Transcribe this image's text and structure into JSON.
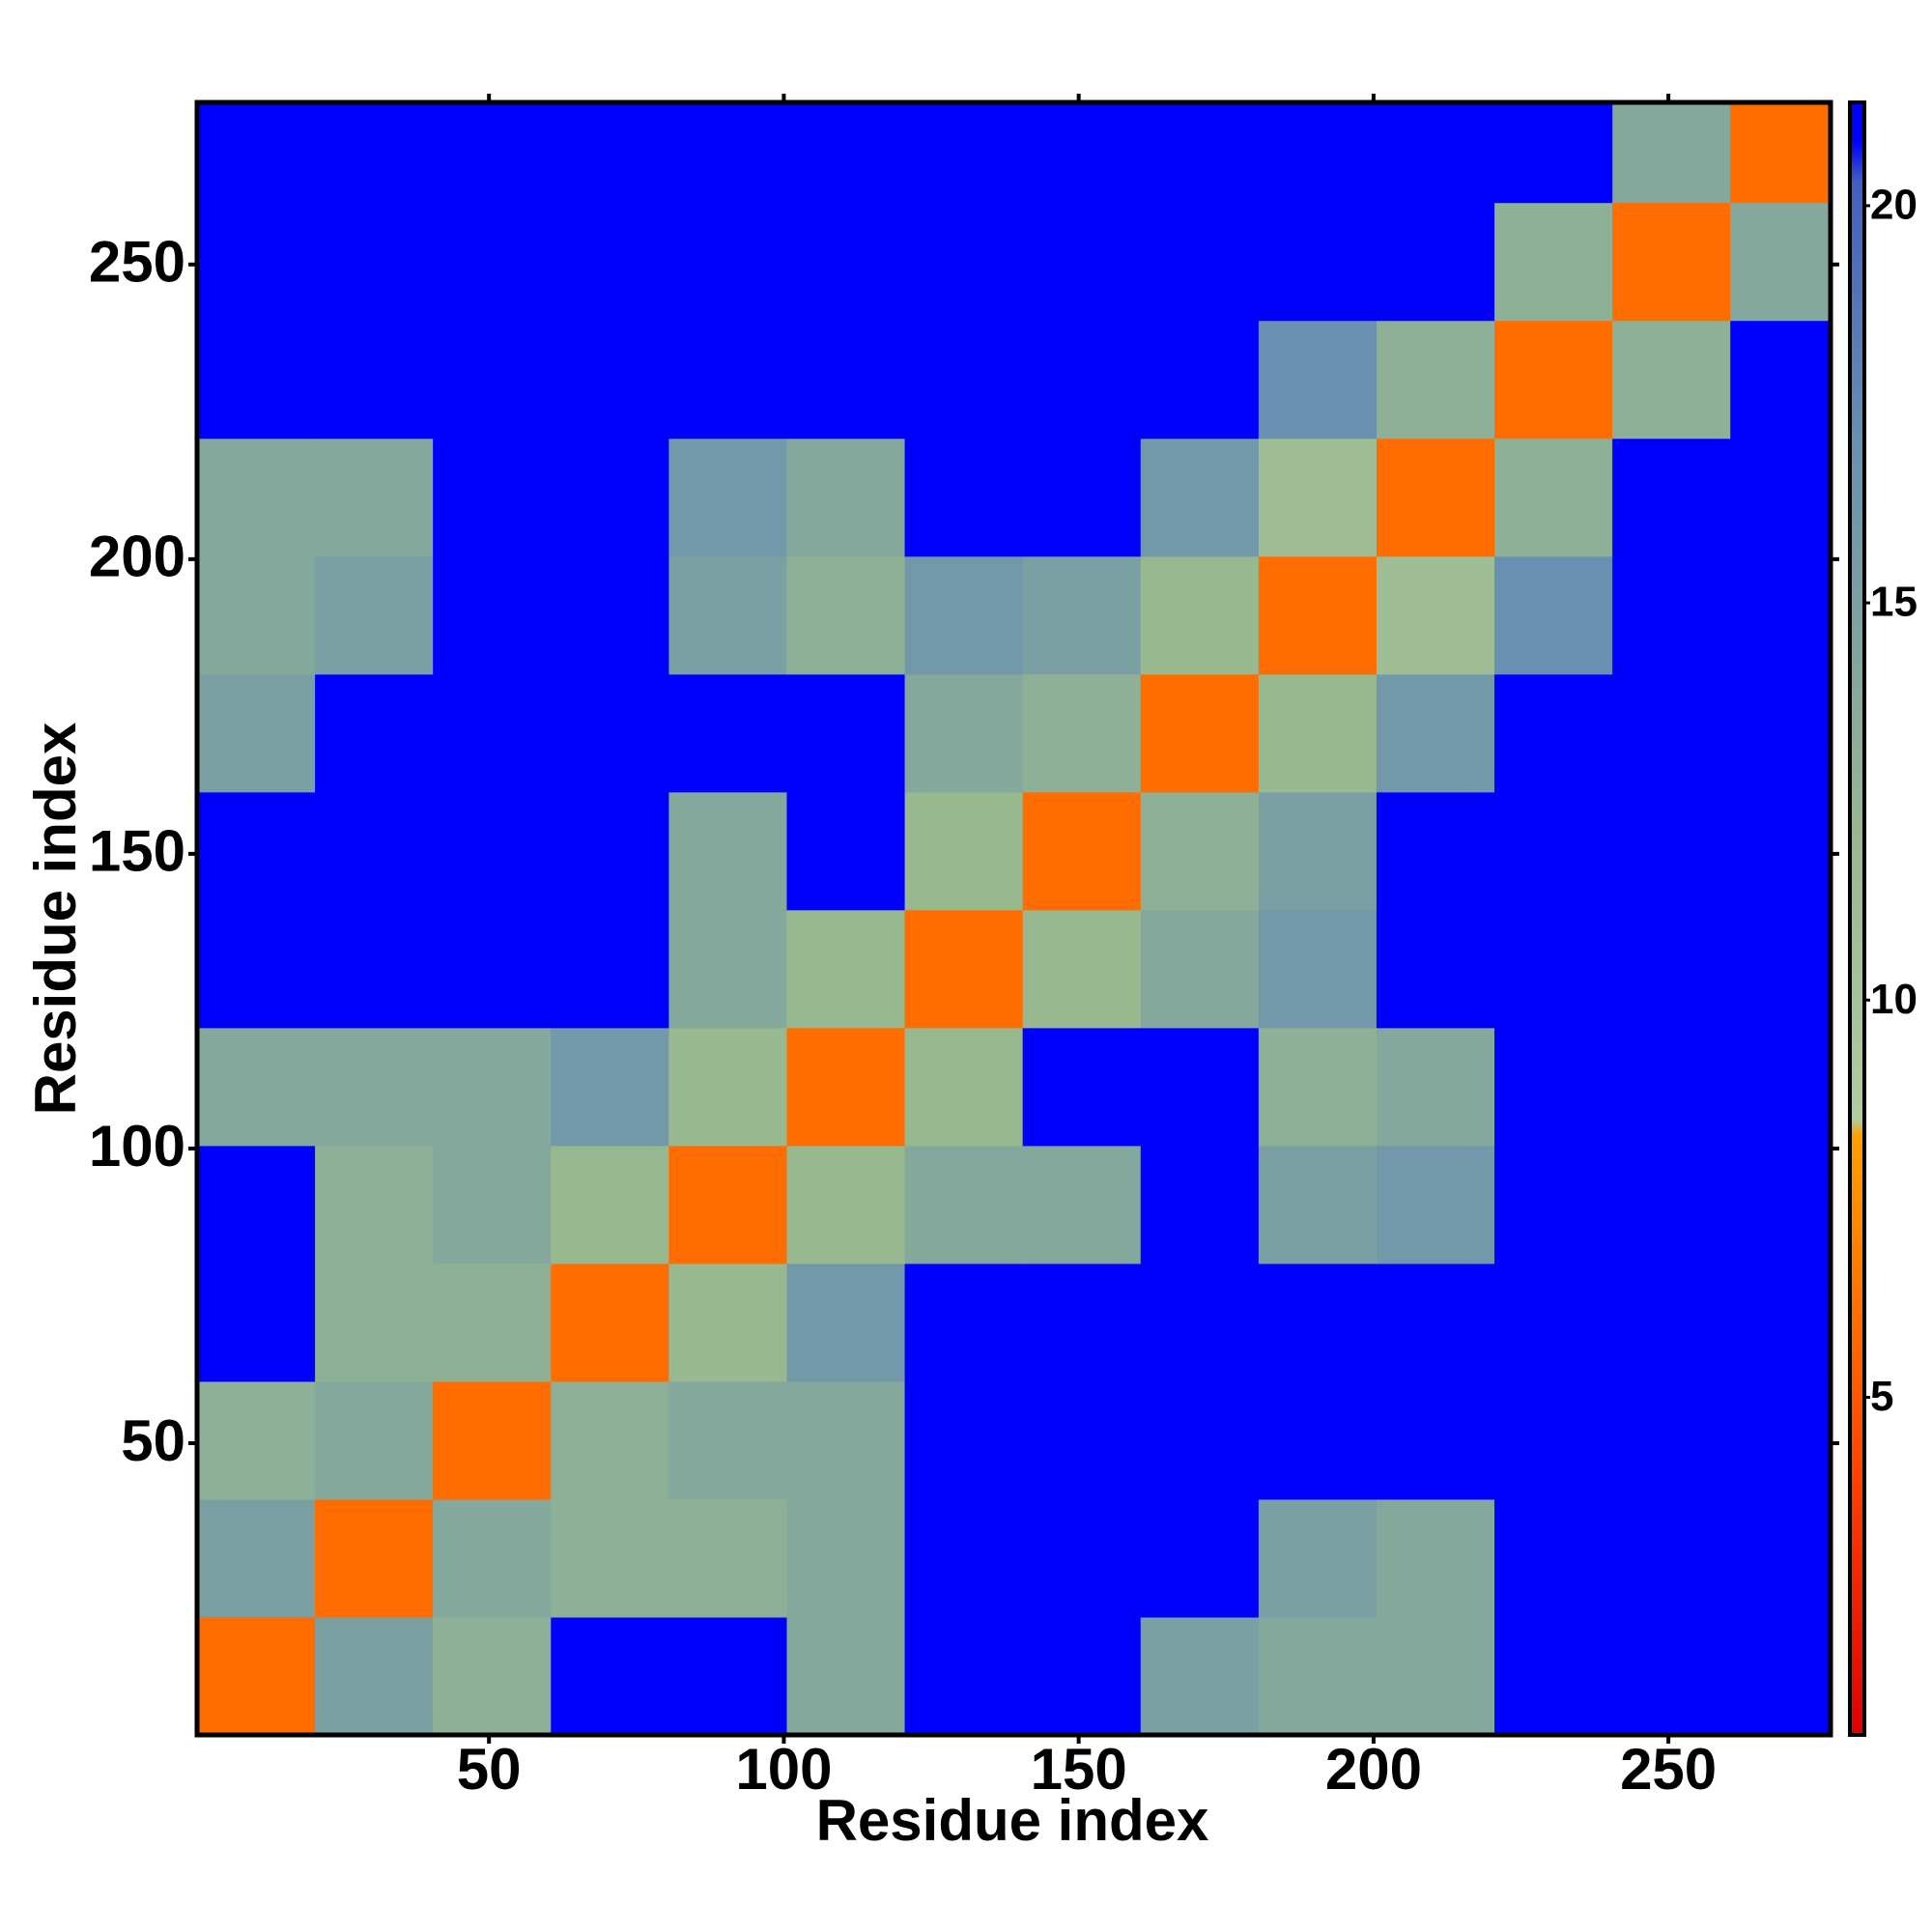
{
  "chart_data": {
    "type": "heatmap",
    "xlabel": "Residue index",
    "ylabel": "Residue index",
    "bins": [
      0.5,
      20.5,
      40.5,
      60.5,
      80.5,
      100.5,
      120.5,
      140.5,
      160.5,
      180.5,
      200.5,
      220.5,
      240.5,
      260.5,
      277.5
    ],
    "z": [
      [
        6,
        15,
        13,
        21,
        21,
        14,
        21,
        21,
        15,
        14,
        14,
        21,
        21,
        21
      ],
      [
        15,
        6,
        14,
        13,
        13,
        14,
        21,
        21,
        21,
        15,
        14,
        21,
        21,
        21
      ],
      [
        13,
        14,
        6,
        13,
        14,
        14,
        21,
        21,
        21,
        21,
        21,
        21,
        21,
        21
      ],
      [
        21,
        13,
        13,
        6,
        12,
        16,
        21,
        21,
        21,
        21,
        21,
        21,
        21,
        21
      ],
      [
        21,
        13,
        14,
        12,
        6,
        12,
        14,
        14,
        21,
        15,
        16,
        21,
        21,
        21
      ],
      [
        14,
        14,
        14,
        16,
        12,
        6,
        12,
        21,
        21,
        13,
        14,
        21,
        21,
        21
      ],
      [
        21,
        21,
        21,
        21,
        14,
        12,
        6,
        12,
        14,
        16,
        21,
        21,
        21,
        21
      ],
      [
        21,
        21,
        21,
        21,
        14,
        21,
        12,
        6,
        13,
        15,
        21,
        21,
        21,
        21
      ],
      [
        15,
        21,
        21,
        21,
        21,
        21,
        14,
        13,
        6,
        12,
        16,
        21,
        21,
        21
      ],
      [
        14,
        15,
        21,
        21,
        15,
        13,
        16,
        15,
        12,
        6,
        11,
        17,
        21,
        21
      ],
      [
        14,
        14,
        21,
        21,
        16,
        14,
        21,
        21,
        16,
        11,
        6,
        13,
        21,
        21
      ],
      [
        21,
        21,
        21,
        21,
        21,
        21,
        21,
        21,
        21,
        17,
        13,
        6,
        13,
        21
      ],
      [
        21,
        21,
        21,
        21,
        21,
        21,
        21,
        21,
        21,
        21,
        21,
        13,
        6,
        14
      ],
      [
        21,
        21,
        21,
        21,
        21,
        21,
        21,
        21,
        21,
        21,
        21,
        21,
        14,
        6
      ]
    ],
    "xlim": [
      0.5,
      277.5
    ],
    "ylim": [
      0.5,
      277.5
    ],
    "xticks": [
      50,
      100,
      150,
      200,
      250
    ],
    "yticks": [
      50,
      100,
      150,
      200,
      250
    ],
    "zlim": [
      0.75,
      21.3
    ],
    "zticks": [
      5,
      10,
      15,
      20
    ],
    "colorscale": [
      {
        "value": 0.75,
        "color": "#e00000"
      },
      {
        "value": 4,
        "color": "#ff4000"
      },
      {
        "value": 8.3,
        "color": "#ffa000"
      },
      {
        "value": 8.5,
        "color": "#b0cca0"
      },
      {
        "value": 12,
        "color": "#98b890"
      },
      {
        "value": 17,
        "color": "#6890b0"
      },
      {
        "value": 20.3,
        "color": "#4060c0"
      },
      {
        "value": 20.8,
        "color": "#0000ff"
      },
      {
        "value": 21.3,
        "color": "#0000ff"
      }
    ]
  }
}
